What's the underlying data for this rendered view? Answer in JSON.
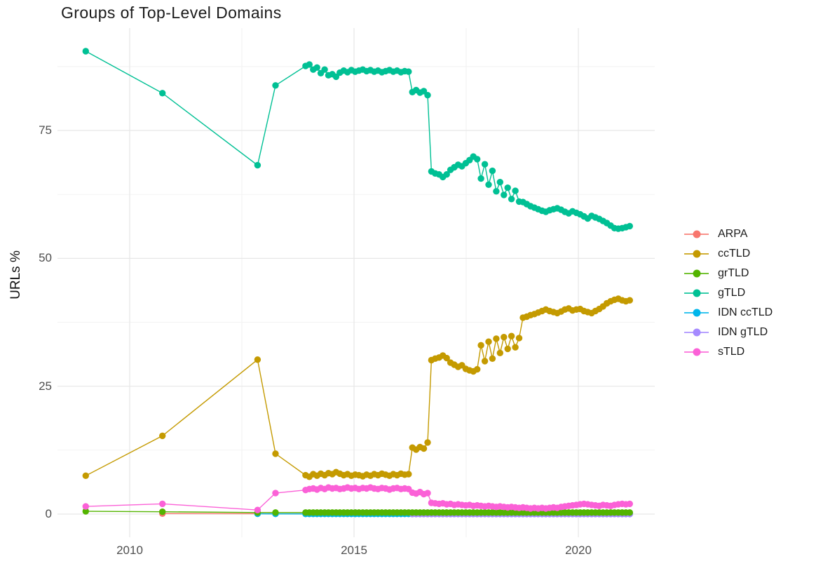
{
  "title": "Groups of Top-Level Domains",
  "y_axis": {
    "label": "URLs %",
    "tick_labels": [
      "0",
      "25",
      "50",
      "75"
    ]
  },
  "x_axis": {
    "tick_labels": [
      "2010",
      "2015",
      "2020"
    ]
  },
  "legend": {
    "items": [
      {
        "label": "ARPA",
        "color": "#F8766D"
      },
      {
        "label": "ccTLD",
        "color": "#C49A00"
      },
      {
        "label": "grTLD",
        "color": "#53B400"
      },
      {
        "label": "gTLD",
        "color": "#00C094"
      },
      {
        "label": "IDN ccTLD",
        "color": "#00B6EB"
      },
      {
        "label": "IDN gTLD",
        "color": "#A58AFF"
      },
      {
        "label": "sTLD",
        "color": "#FB61D7"
      }
    ]
  },
  "chart_data": {
    "type": "line",
    "title": "Groups of Top-Level Domains",
    "xlabel": "",
    "ylabel": "URLs %",
    "x_ticks": [
      2010,
      2015,
      2020
    ],
    "x_minor_ticks": [
      2012.5,
      2017.5
    ],
    "y_ticks": [
      0,
      25,
      50,
      75
    ],
    "y_minor_ticks": [
      12.5,
      37.5,
      62.5,
      87.5
    ],
    "xlim": [
      2008.4,
      2021.7
    ],
    "ylim": [
      -2.5,
      92.5
    ],
    "grid": true,
    "legend_position": "right",
    "marker": "point",
    "z_order": [
      "ARPA",
      "IDN ccTLD",
      "IDN gTLD",
      "grTLD",
      "ccTLD",
      "gTLD",
      "sTLD"
    ],
    "series": [
      {
        "name": "ARPA",
        "color": "#F8766D",
        "points": [
          [
            2010.73,
            0.1
          ],
          [
            2012.85,
            0.08
          ],
          [
            2013.25,
            0.06
          ]
        ],
        "dense": {
          "x_start": 2013.92,
          "x_step": 0.085,
          "fill_count": 86,
          "fill_value": 0.05
        }
      },
      {
        "name": "ccTLD",
        "color": "#C49A00",
        "points": [
          [
            2009.02,
            7.5
          ],
          [
            2010.73,
            15.3
          ],
          [
            2012.85,
            30.2
          ],
          [
            2013.25,
            11.8
          ]
        ],
        "dense": {
          "x_start": 2013.92,
          "x_step": 0.085,
          "values": [
            7.6,
            7.3,
            7.8,
            7.5,
            7.9,
            7.6,
            8.0,
            7.8,
            8.2,
            7.9,
            7.6,
            7.8,
            7.5,
            7.7,
            7.6,
            7.4,
            7.7,
            7.5,
            7.8,
            7.6,
            7.9,
            7.7,
            7.5,
            7.8,
            7.6,
            7.9,
            7.7,
            7.8,
            13.0,
            12.6,
            13.1,
            12.8,
            14.0,
            30.1,
            30.4,
            30.6,
            31.0,
            30.5,
            29.6,
            29.2,
            28.8,
            29.1,
            28.4,
            28.1,
            27.9,
            28.3,
            33.0,
            29.9,
            33.7,
            30.4,
            34.3,
            31.5,
            34.6,
            32.3,
            34.8,
            32.6,
            34.4,
            38.4,
            38.6,
            38.9,
            39.1,
            39.4,
            39.7,
            40.0,
            39.7,
            39.5,
            39.3,
            39.6,
            40.0,
            40.2,
            39.8,
            40.0,
            40.1,
            39.7,
            39.5,
            39.3,
            39.7,
            40.1,
            40.6,
            41.2,
            41.6,
            41.9,
            42.1,
            41.8,
            41.6,
            41.8
          ]
        }
      },
      {
        "name": "grTLD",
        "color": "#53B400",
        "points": [
          [
            2009.02,
            0.55
          ],
          [
            2010.73,
            0.45
          ],
          [
            2012.85,
            0.3
          ],
          [
            2013.25,
            0.3
          ]
        ],
        "dense": {
          "x_start": 2013.92,
          "x_step": 0.085,
          "fill_count": 86,
          "fill_value": 0.3
        }
      },
      {
        "name": "gTLD",
        "color": "#00C094",
        "points": [
          [
            2009.02,
            90.5
          ],
          [
            2010.73,
            82.3
          ],
          [
            2012.85,
            68.2
          ],
          [
            2013.25,
            83.8
          ]
        ],
        "dense": {
          "x_start": 2013.92,
          "x_step": 0.085,
          "values": [
            87.6,
            87.9,
            86.9,
            87.3,
            86.2,
            86.9,
            85.8,
            86.0,
            85.5,
            86.3,
            86.7,
            86.4,
            86.8,
            86.5,
            86.7,
            86.9,
            86.6,
            86.8,
            86.5,
            86.7,
            86.4,
            86.6,
            86.8,
            86.5,
            86.7,
            86.4,
            86.6,
            86.5,
            82.5,
            82.9,
            82.4,
            82.7,
            81.9,
            67.0,
            66.6,
            66.4,
            65.9,
            66.4,
            67.3,
            67.8,
            68.3,
            68.0,
            68.6,
            69.2,
            69.9,
            69.4,
            65.6,
            68.4,
            64.4,
            67.1,
            63.1,
            64.9,
            62.4,
            63.8,
            61.6,
            63.2,
            61.1,
            61.0,
            60.6,
            60.2,
            59.9,
            59.6,
            59.3,
            59.1,
            59.4,
            59.6,
            59.8,
            59.5,
            59.1,
            58.8,
            59.2,
            58.9,
            58.6,
            58.2,
            57.8,
            58.3,
            58.0,
            57.7,
            57.3,
            56.9,
            56.4,
            55.9,
            55.8,
            55.9,
            56.1,
            56.3
          ]
        }
      },
      {
        "name": "IDN ccTLD",
        "color": "#00B6EB",
        "points": [
          [
            2012.85,
            0.05
          ],
          [
            2013.25,
            0.04
          ]
        ],
        "dense": {
          "x_start": 2013.92,
          "x_step": 0.085,
          "fill_count": 86,
          "fill_value": 0.03
        }
      },
      {
        "name": "IDN gTLD",
        "color": "#A58AFF",
        "points": [],
        "dense": {
          "x_start": 2016.3,
          "x_step": 0.085,
          "fill_count": 58,
          "fill_value": 0.02
        }
      },
      {
        "name": "sTLD",
        "color": "#FB61D7",
        "points": [
          [
            2009.02,
            1.5
          ],
          [
            2010.73,
            2.0
          ],
          [
            2012.85,
            0.8
          ],
          [
            2013.25,
            4.1
          ]
        ],
        "dense": {
          "x_start": 2013.92,
          "x_step": 0.085,
          "values": [
            4.7,
            4.9,
            5.0,
            4.8,
            5.1,
            4.9,
            5.2,
            5.0,
            5.1,
            4.9,
            5.0,
            5.2,
            5.0,
            5.1,
            4.9,
            5.1,
            5.0,
            5.2,
            5.0,
            4.9,
            5.1,
            5.0,
            4.8,
            5.0,
            5.1,
            4.9,
            5.0,
            4.9,
            4.2,
            4.0,
            4.3,
            3.9,
            4.1,
            2.2,
            2.1,
            2.0,
            2.1,
            1.9,
            2.0,
            1.8,
            1.9,
            1.8,
            1.7,
            1.8,
            1.6,
            1.7,
            1.6,
            1.5,
            1.6,
            1.5,
            1.4,
            1.5,
            1.4,
            1.3,
            1.4,
            1.3,
            1.2,
            1.3,
            1.2,
            1.1,
            1.2,
            1.1,
            1.2,
            1.1,
            1.2,
            1.3,
            1.2,
            1.4,
            1.5,
            1.6,
            1.7,
            1.8,
            1.9,
            2.0,
            1.9,
            1.8,
            1.7,
            1.6,
            1.8,
            1.7,
            1.6,
            1.8,
            1.9,
            2.0,
            1.9,
            2.0
          ]
        }
      }
    ]
  }
}
